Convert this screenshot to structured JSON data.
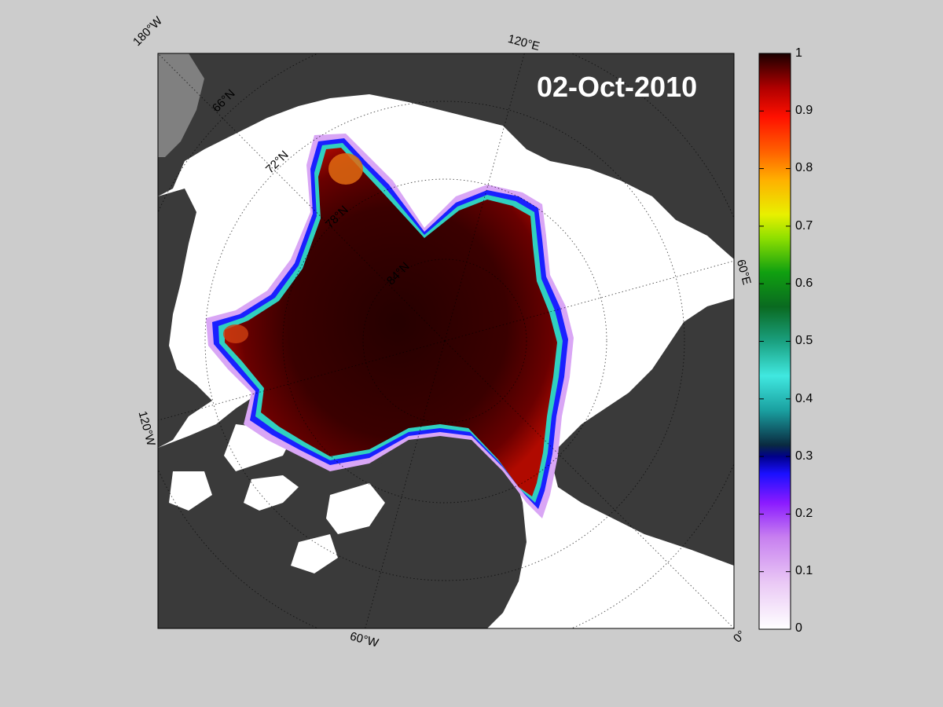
{
  "map": {
    "date": "02-Oct-2010",
    "projection": "north-polar-stereographic",
    "colors": {
      "background": "#cccccc",
      "ocean_open": "#ffffff",
      "land": "#3a3a3a",
      "land_light": "#808080"
    },
    "longitude_labels": [
      "180°W",
      "120°E",
      "60°E",
      "0°",
      "60°W",
      "120°W"
    ],
    "latitude_labels": [
      "66°N",
      "72°N",
      "78°N",
      "84°N"
    ]
  },
  "colorbar": {
    "min": 0,
    "max": 1,
    "tick_labels": [
      "1",
      "0.9",
      "0.8",
      "0.7",
      "0.6",
      "0.5",
      "0.4",
      "0.3",
      "0.2",
      "0.1",
      "0"
    ],
    "colormap": "jet-like with white-to-purple low end and dark red high end"
  }
}
